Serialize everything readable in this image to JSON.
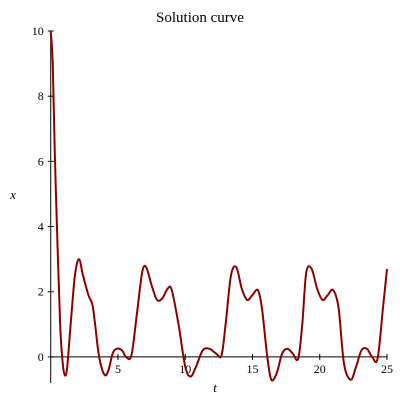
{
  "chart_data": {
    "type": "line",
    "title": "Solution curve",
    "xlabel": "t",
    "ylabel": "x",
    "xlim": [
      -0.5,
      25
    ],
    "ylim": [
      -0.8,
      10
    ],
    "xticks": [
      5,
      10,
      15,
      20,
      25
    ],
    "yticks": [
      0,
      2,
      4,
      6,
      8,
      10
    ],
    "grid": false,
    "line_color": "#8b0000",
    "series": [
      {
        "x": [
          0,
          0.15,
          0.3,
          0.5,
          0.7,
          0.85,
          1.0,
          1.2,
          1.5,
          1.8,
          2.1,
          2.4,
          2.8,
          3.1,
          3.3,
          3.6,
          4.0,
          4.3,
          4.6,
          4.9,
          5.3,
          5.6,
          6.0,
          6.4,
          6.8,
          7.1,
          7.5,
          7.9,
          8.3,
          8.7,
          9.0,
          9.5,
          10.0,
          10.4,
          10.8,
          11.3,
          11.8,
          12.3,
          12.7,
          13.0,
          13.4,
          13.8,
          14.2,
          14.6,
          15.0,
          15.4,
          15.7,
          16.1,
          16.4,
          16.8,
          17.2,
          17.6,
          18.0,
          18.4,
          18.7,
          19.0,
          19.4,
          19.8,
          20.2,
          20.6,
          21.0,
          21.4,
          21.8,
          22.3,
          22.7,
          23.1,
          23.5,
          23.9,
          24.3,
          24.7,
          25.0
        ],
        "y": [
          10.0,
          9.0,
          6.3,
          3.5,
          1.0,
          0.0,
          -0.5,
          -0.4,
          1.1,
          2.5,
          3.0,
          2.5,
          1.9,
          1.6,
          1.0,
          0.0,
          -0.55,
          -0.4,
          0.1,
          0.25,
          0.2,
          0.0,
          0.05,
          1.3,
          2.6,
          2.75,
          2.2,
          1.75,
          1.8,
          2.1,
          2.05,
          1.0,
          -0.3,
          -0.6,
          -0.3,
          0.2,
          0.25,
          0.1,
          0.05,
          1.0,
          2.5,
          2.75,
          2.1,
          1.75,
          1.9,
          2.05,
          1.5,
          0.0,
          -0.7,
          -0.5,
          0.1,
          0.25,
          0.1,
          -0.05,
          1.0,
          2.6,
          2.7,
          2.1,
          1.75,
          1.9,
          2.05,
          1.5,
          -0.2,
          -0.7,
          -0.3,
          0.2,
          0.25,
          0.0,
          -0.05,
          1.5,
          2.7
        ]
      }
    ]
  }
}
